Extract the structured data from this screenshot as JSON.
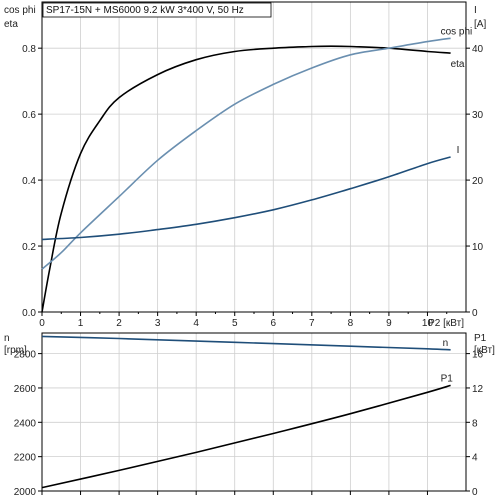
{
  "title": "SP17-15N + MS6000   9.2 kW   3*400 V, 50 Hz",
  "chart_data": [
    {
      "type": "line",
      "panel": "efficiency",
      "x_axis": {
        "label": "P2 [кВт]",
        "ticks": [
          0,
          1,
          2,
          3,
          4,
          5,
          6,
          7,
          8,
          9,
          10
        ],
        "range": [
          0,
          11
        ]
      },
      "left_axis": {
        "label_top": "cos phi",
        "label_bottom": "eta",
        "ticks": [
          0.0,
          0.2,
          0.4,
          0.6,
          0.8
        ],
        "range": [
          0,
          0.94
        ]
      },
      "right_axis": {
        "label_top": "I",
        "label_bottom": "[A]",
        "ticks": [
          0,
          10,
          20,
          30,
          40
        ],
        "range": [
          0,
          47
        ]
      },
      "grid": true,
      "series": [
        {
          "name": "eta",
          "axis": "left",
          "color": "#000000",
          "x": [
            0,
            0.2,
            0.5,
            1,
            1.5,
            2,
            3,
            4,
            5,
            6,
            7,
            7.5,
            8,
            9,
            10,
            10.6
          ],
          "y": [
            0.0,
            0.13,
            0.3,
            0.48,
            0.58,
            0.65,
            0.72,
            0.765,
            0.79,
            0.8,
            0.805,
            0.806,
            0.805,
            0.8,
            0.79,
            0.785
          ]
        },
        {
          "name": "cos phi",
          "axis": "left",
          "color": "#6a8fb0",
          "x": [
            0,
            0.5,
            1,
            2,
            3,
            4,
            5,
            6,
            7,
            8,
            9,
            10,
            10.6
          ],
          "y": [
            0.13,
            0.18,
            0.24,
            0.35,
            0.46,
            0.55,
            0.63,
            0.69,
            0.74,
            0.78,
            0.8,
            0.82,
            0.83
          ]
        },
        {
          "name": "I",
          "axis": "right",
          "color": "#1f4e79",
          "x": [
            0,
            1,
            2,
            3,
            4,
            5,
            6,
            7,
            8,
            9,
            10,
            10.6
          ],
          "y": [
            11.0,
            11.3,
            11.8,
            12.5,
            13.3,
            14.3,
            15.5,
            17.0,
            18.7,
            20.5,
            22.5,
            23.5
          ]
        }
      ]
    },
    {
      "type": "line",
      "panel": "speed-power",
      "x_axis": {
        "ticks": [
          0,
          1,
          2,
          3,
          4,
          5,
          6,
          7,
          8,
          9,
          10
        ],
        "range": [
          0,
          11
        ]
      },
      "left_axis": {
        "label_top": "n",
        "label_bottom": "[rpm]",
        "ticks": [
          2000,
          2200,
          2400,
          2600,
          2800
        ],
        "range": [
          2000,
          2920
        ]
      },
      "right_axis": {
        "label_top": "P1",
        "label_bottom": "[кВт]",
        "ticks": [
          0,
          4,
          8,
          12,
          16
        ],
        "range": [
          0,
          18.4
        ]
      },
      "grid": true,
      "series": [
        {
          "name": "n",
          "axis": "left",
          "color": "#1f4e79",
          "x": [
            0,
            2,
            4,
            6,
            8,
            10,
            10.6
          ],
          "y": [
            2900,
            2888,
            2873,
            2858,
            2843,
            2828,
            2822
          ]
        },
        {
          "name": "P1",
          "axis": "right",
          "color": "#000000",
          "x": [
            0,
            2,
            4,
            6,
            8,
            10,
            10.6
          ],
          "y": [
            0.4,
            2.4,
            4.5,
            6.7,
            9.0,
            11.5,
            12.3
          ]
        }
      ]
    }
  ]
}
